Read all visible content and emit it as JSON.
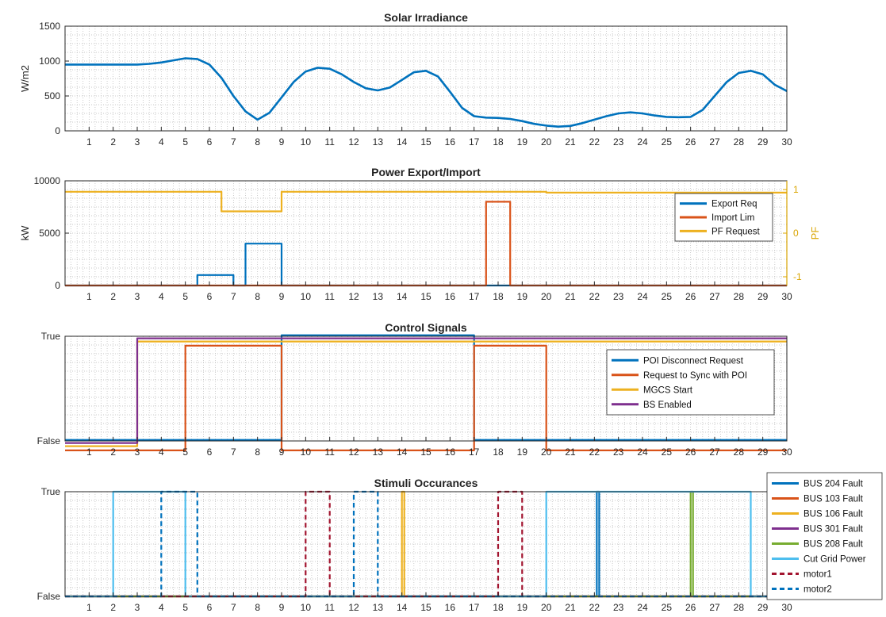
{
  "chart_data": [
    {
      "type": "line",
      "title": "Solar Irradiance",
      "ylabel": "W/m2",
      "xlim": [
        0,
        30
      ],
      "ylim": [
        0,
        1500
      ],
      "xticks": [
        1,
        2,
        3,
        4,
        5,
        6,
        7,
        8,
        9,
        10,
        11,
        12,
        13,
        14,
        15,
        16,
        17,
        18,
        19,
        20,
        21,
        22,
        23,
        24,
        25,
        26,
        27,
        28,
        29,
        30
      ],
      "yticks": [
        0,
        500,
        1000,
        1500
      ],
      "grid": "minor",
      "series": [
        {
          "color": "#0072BD",
          "x": [
            0,
            1,
            2,
            3,
            3.5,
            4,
            4.5,
            5,
            5.5,
            6,
            6.5,
            7,
            7.5,
            8,
            8.5,
            9,
            9.5,
            10,
            10.5,
            11,
            11.5,
            12,
            12.5,
            13,
            13.5,
            14,
            14.5,
            15,
            15.5,
            16,
            16.5,
            17,
            17.5,
            18,
            18.5,
            19,
            19.5,
            20,
            20.5,
            21,
            21.5,
            22,
            22.5,
            23,
            23.5,
            24,
            24.5,
            25,
            25.5,
            26,
            26.5,
            27,
            27.5,
            28,
            28.5,
            29,
            29.5,
            30
          ],
          "y": [
            950,
            950,
            950,
            950,
            960,
            980,
            1010,
            1040,
            1030,
            950,
            760,
            500,
            280,
            160,
            260,
            480,
            700,
            850,
            905,
            890,
            810,
            700,
            610,
            580,
            620,
            730,
            840,
            860,
            780,
            560,
            330,
            210,
            190,
            185,
            170,
            140,
            100,
            75,
            60,
            70,
            110,
            160,
            210,
            250,
            265,
            250,
            220,
            200,
            195,
            200,
            300,
            500,
            700,
            830,
            860,
            810,
            660,
            570
          ]
        }
      ]
    },
    {
      "type": "line",
      "title": "Power Export/Import",
      "ylabel": "kW",
      "y2label": "PF",
      "xlim": [
        0,
        30
      ],
      "ylim": [
        0,
        10000
      ],
      "y2lim": [
        -1.2,
        1.2
      ],
      "xticks": [
        1,
        2,
        3,
        4,
        5,
        6,
        7,
        8,
        9,
        10,
        11,
        12,
        13,
        14,
        15,
        16,
        17,
        18,
        19,
        20,
        21,
        22,
        23,
        24,
        25,
        26,
        27,
        28,
        29,
        30
      ],
      "yticks": [
        0,
        5000,
        10000
      ],
      "y2ticks": [
        -1,
        0,
        1
      ],
      "grid": "minor",
      "legend": {
        "position": "top-right"
      },
      "series": [
        {
          "name": "Export Req",
          "color": "#0072BD",
          "axis": "left",
          "x": [
            0,
            5.5,
            5.5,
            7,
            7,
            7.5,
            7.5,
            9,
            9,
            17.5,
            17.5,
            18.5,
            18.5,
            30
          ],
          "y": [
            0,
            0,
            1000,
            1000,
            0,
            0,
            4000,
            4000,
            0,
            0,
            0,
            0,
            0,
            0
          ]
        },
        {
          "name": "Import Lim",
          "color": "#D95319",
          "axis": "left",
          "x": [
            0,
            17.5,
            17.5,
            18.5,
            18.5,
            30
          ],
          "y": [
            0,
            0,
            8000,
            8000,
            0,
            0
          ]
        },
        {
          "name": "PF Request",
          "color": "#EDB120",
          "axis": "right",
          "x": [
            0,
            6.5,
            6.5,
            9,
            9,
            20,
            20,
            30
          ],
          "y": [
            0.95,
            0.95,
            0.5,
            0.5,
            0.95,
            0.95,
            0.93,
            0.93
          ]
        }
      ]
    },
    {
      "type": "line",
      "title": "Control Signals",
      "xlim": [
        0,
        30
      ],
      "ylim": [
        0,
        1
      ],
      "xticks": [
        1,
        2,
        3,
        4,
        5,
        6,
        7,
        8,
        9,
        10,
        11,
        12,
        13,
        14,
        15,
        16,
        17,
        18,
        19,
        20,
        21,
        22,
        23,
        24,
        25,
        26,
        27,
        28,
        29,
        30
      ],
      "yticklabels": [
        "False",
        "True"
      ],
      "grid": "minor",
      "legend": {
        "position": "top-right"
      },
      "series": [
        {
          "name": "POI Disconnect Request",
          "color": "#0072BD",
          "x": [
            0,
            9,
            9,
            17,
            17,
            30
          ],
          "y": [
            0,
            0,
            1,
            1,
            0,
            0
          ],
          "offset": 0.01
        },
        {
          "name": "Request to Sync with POI",
          "color": "#D95319",
          "x": [
            0,
            5,
            5,
            9,
            9,
            17,
            17,
            20,
            20,
            30
          ],
          "y": [
            0,
            0,
            1,
            1,
            0,
            0,
            1,
            1,
            0,
            0
          ],
          "offset": -0.09
        },
        {
          "name": "MGCS Start",
          "color": "#EDB120",
          "x": [
            0,
            3,
            3,
            30
          ],
          "y": [
            0,
            0,
            1,
            1
          ],
          "offset": -0.05
        },
        {
          "name": "BS Enabled",
          "color": "#7E2F8E",
          "x": [
            0,
            3,
            3,
            30
          ],
          "y": [
            0,
            0,
            1,
            1
          ],
          "offset": -0.02
        }
      ]
    },
    {
      "type": "line",
      "title": "Stimuli Occurances",
      "xlim": [
        0,
        30
      ],
      "ylim": [
        0,
        1
      ],
      "xticks": [
        1,
        2,
        3,
        4,
        5,
        6,
        7,
        8,
        9,
        10,
        11,
        12,
        13,
        14,
        15,
        16,
        17,
        18,
        19,
        20,
        21,
        22,
        23,
        24,
        25,
        26,
        27,
        28,
        29,
        30
      ],
      "yticklabels": [
        "False",
        "True"
      ],
      "grid": "minor",
      "legend": {
        "position": "outside-right"
      },
      "series": [
        {
          "name": "BUS 204 Fault",
          "color": "#0072BD",
          "x": [
            0,
            22.1,
            22.1,
            22.2,
            22.2,
            30
          ],
          "y": [
            0,
            0,
            1,
            1,
            0,
            0
          ]
        },
        {
          "name": "BUS 103 Fault",
          "color": "#D95319",
          "x": [
            0,
            30
          ],
          "y": [
            0,
            0
          ]
        },
        {
          "name": "BUS 106 Fault",
          "color": "#EDB120",
          "x": [
            0,
            14,
            14,
            14.1,
            14.1,
            30
          ],
          "y": [
            0,
            0,
            1,
            1,
            0,
            0
          ]
        },
        {
          "name": "BUS 301 Fault",
          "color": "#7E2F8E",
          "x": [
            0,
            30
          ],
          "y": [
            0,
            0
          ]
        },
        {
          "name": "BUS 208 Fault",
          "color": "#77AC30",
          "x": [
            0,
            26,
            26,
            26.1,
            26.1,
            30
          ],
          "y": [
            0,
            0,
            1,
            1,
            0,
            0
          ]
        },
        {
          "name": "Cut Grid Power",
          "color": "#4DBEEE",
          "x": [
            0,
            2,
            2,
            5,
            5,
            20,
            20,
            28.5,
            28.5,
            30
          ],
          "y": [
            0,
            0,
            1,
            1,
            0,
            0,
            1,
            1,
            0,
            0
          ]
        },
        {
          "name": "motor1",
          "color": "#A2142F",
          "dash": true,
          "x": [
            0,
            10,
            10,
            11,
            11,
            18,
            18,
            19,
            19,
            30
          ],
          "y": [
            0,
            0,
            1,
            1,
            0,
            0,
            1,
            1,
            0,
            0
          ]
        },
        {
          "name": "motor2",
          "color": "#0072BD",
          "dash": true,
          "x": [
            0,
            4,
            4,
            5.5,
            5.5,
            12,
            12,
            13,
            13,
            30
          ],
          "y": [
            0,
            0,
            1,
            1,
            0,
            0,
            1,
            1,
            0,
            0
          ]
        }
      ]
    }
  ]
}
